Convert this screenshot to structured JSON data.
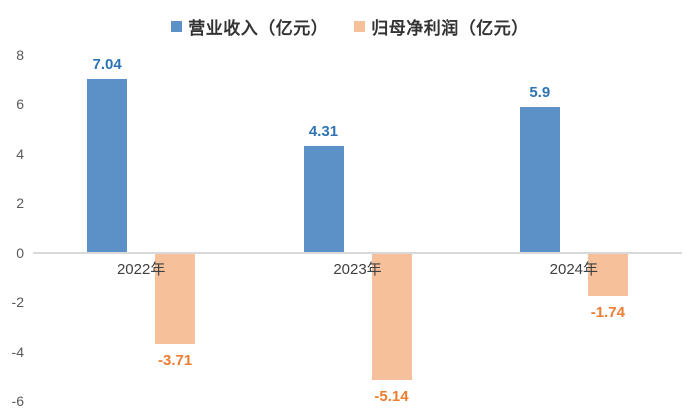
{
  "chart_data": {
    "type": "bar",
    "title": "",
    "categories": [
      "2022年",
      "2023年",
      "2024年"
    ],
    "series": [
      {
        "key": "revenue",
        "name": "营业收入（亿元）",
        "values": [
          7.04,
          4.31,
          5.9
        ],
        "labels": [
          "7.04",
          "4.31",
          "5.9"
        ],
        "bar_color": "#5B91C7",
        "label_color": "#2E74B5"
      },
      {
        "key": "net-profit",
        "name": "归母净利润（亿元）",
        "values": [
          -3.71,
          -5.14,
          -1.74
        ],
        "labels": [
          "-3.71",
          "-5.14",
          "-1.74"
        ],
        "bar_color": "#F6C09B",
        "label_color": "#ED7D31"
      }
    ],
    "ylim": [
      -6,
      8
    ],
    "yticks": [
      8,
      6,
      4,
      2,
      0,
      -2,
      -4,
      -6
    ],
    "grid": false,
    "legend_position": "top",
    "axis_line_color": "#D9D9D9",
    "tick_label_color": "#595959",
    "category_label_color": "#404040",
    "background": "#FFFFFF"
  },
  "legend": {
    "items": [
      {
        "label": "营业收入（亿元）",
        "color": "#5B91C7"
      },
      {
        "label": "归母净利润（亿元）",
        "color": "#F6C09B"
      }
    ]
  }
}
